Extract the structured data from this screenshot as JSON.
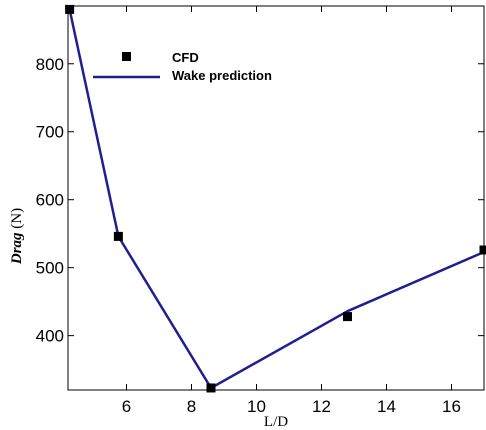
{
  "chart_data": {
    "type": "line",
    "title": "",
    "xlabel": "L/D",
    "ylabel_main": "Drag",
    "ylabel_unit": " (N)",
    "xlim": [
      4.2,
      17.0
    ],
    "ylim": [
      320,
      885
    ],
    "xticks": [
      6,
      8,
      10,
      12,
      14,
      16
    ],
    "yticks": [
      400,
      500,
      600,
      700,
      800
    ],
    "xtick_labels": [
      "6",
      "8",
      "10",
      "12",
      "14",
      "16"
    ],
    "ytick_labels": [
      "400",
      "500",
      "600",
      "700",
      "800"
    ],
    "grid": false,
    "legend_position": "top-left",
    "series": [
      {
        "name": "CFD",
        "style": "markers",
        "marker": "square",
        "color": "#000000",
        "x": [
          4.25,
          5.75,
          8.6,
          12.8,
          17.0
        ],
        "y": [
          880,
          546,
          323,
          428,
          526
        ]
      },
      {
        "name": "Wake prediction",
        "style": "line",
        "color": "#1f1f8f",
        "x": [
          4.25,
          5.75,
          8.6,
          12.8,
          17.0
        ],
        "y": [
          880,
          546,
          323,
          436,
          523
        ]
      }
    ]
  }
}
